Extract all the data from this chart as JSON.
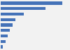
{
  "values": [
    270000,
    195000,
    100000,
    65000,
    52000,
    40000,
    32000,
    22000,
    10000
  ],
  "bar_color": "#4472b8",
  "background_color": "#f2f2f2",
  "grid_color": "#ffffff",
  "xlim": [
    0,
    300000
  ]
}
